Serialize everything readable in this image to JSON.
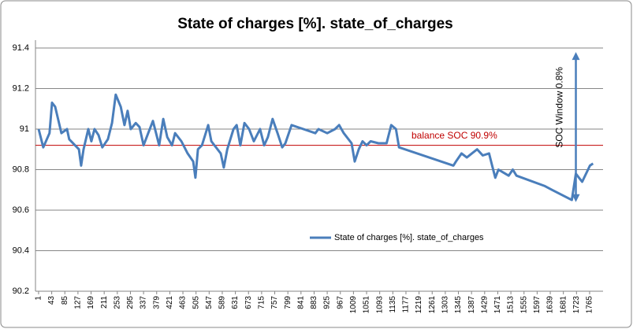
{
  "chart_data": {
    "type": "line",
    "title": "State of charges [%]. state_of_charges",
    "xlim": [
      -9,
      1808
    ],
    "xticks": [
      1,
      43,
      85,
      127,
      169,
      211,
      253,
      295,
      337,
      379,
      421,
      463,
      505,
      547,
      589,
      631,
      673,
      715,
      757,
      799,
      841,
      883,
      925,
      967,
      1009,
      1051,
      1093,
      1135,
      1177,
      1219,
      1261,
      1303,
      1345,
      1387,
      1429,
      1471,
      1513,
      1555,
      1597,
      1639,
      1681,
      1723,
      1765
    ],
    "ylim": [
      90.2,
      91.4
    ],
    "yticks": [
      90.2,
      90.4,
      90.6,
      90.8,
      91,
      91.2,
      91.4
    ],
    "grid": true,
    "legend": "center",
    "series": [
      {
        "name": "State of charges [%]. state_of_charges",
        "color": "#4a7ebb",
        "x": [
          1,
          16,
          36,
          44,
          54,
          74,
          92,
          99,
          130,
          137,
          145,
          160,
          170,
          180,
          193,
          205,
          223,
          236,
          248,
          264,
          276,
          286,
          296,
          312,
          324,
          337,
          352,
          367,
          377,
          387,
          400,
          413,
          428,
          438,
          458,
          478,
          496,
          503,
          511,
          524,
          534,
          544,
          554,
          584,
          594,
          605,
          625,
          635,
          647,
          660,
          675,
          690,
          710,
          723,
          735,
          750,
          766,
          781,
          791,
          811,
          887,
          897,
          925,
          950,
          963,
          978,
          1003,
          1013,
          1026,
          1038,
          1051,
          1064,
          1089,
          1115,
          1130,
          1145,
          1155,
          1329,
          1337,
          1355,
          1372,
          1388,
          1405,
          1423,
          1443,
          1453,
          1463,
          1473,
          1506,
          1519,
          1531,
          1620,
          1645,
          1708,
          1721,
          1741,
          1766,
          1776
        ],
        "values": [
          91.0,
          90.91,
          90.98,
          91.13,
          91.11,
          90.98,
          91.0,
          90.95,
          90.9,
          90.82,
          90.9,
          91.0,
          90.94,
          91.0,
          90.97,
          90.91,
          90.95,
          91.03,
          91.17,
          91.11,
          91.02,
          91.09,
          91.0,
          91.03,
          91.01,
          90.92,
          90.98,
          91.04,
          90.98,
          90.92,
          91.05,
          90.96,
          90.92,
          90.98,
          90.94,
          90.88,
          90.84,
          90.76,
          90.9,
          90.92,
          90.97,
          91.02,
          90.94,
          90.88,
          90.81,
          90.9,
          91.0,
          91.02,
          90.92,
          91.03,
          91.0,
          90.94,
          91.0,
          90.92,
          90.96,
          91.05,
          90.98,
          90.91,
          90.93,
          91.02,
          90.98,
          91.0,
          90.98,
          91.0,
          91.02,
          90.98,
          90.93,
          90.84,
          90.9,
          90.94,
          90.92,
          90.94,
          90.93,
          90.93,
          91.02,
          91.0,
          90.91,
          90.82,
          90.84,
          90.88,
          90.86,
          90.88,
          90.9,
          90.87,
          90.88,
          90.82,
          90.76,
          90.8,
          90.77,
          90.8,
          90.77,
          90.72,
          90.7,
          90.65,
          90.78,
          90.74,
          90.82,
          90.83
        ]
      }
    ],
    "balance_line": {
      "value": 90.92,
      "label": "balance SOC  90.9%",
      "color": "#c00000"
    },
    "window_arrow": {
      "x": 1721,
      "from": 91.38,
      "to": 90.64,
      "label": "SOC Window 0.8%",
      "color": "#4a7ebb"
    }
  }
}
